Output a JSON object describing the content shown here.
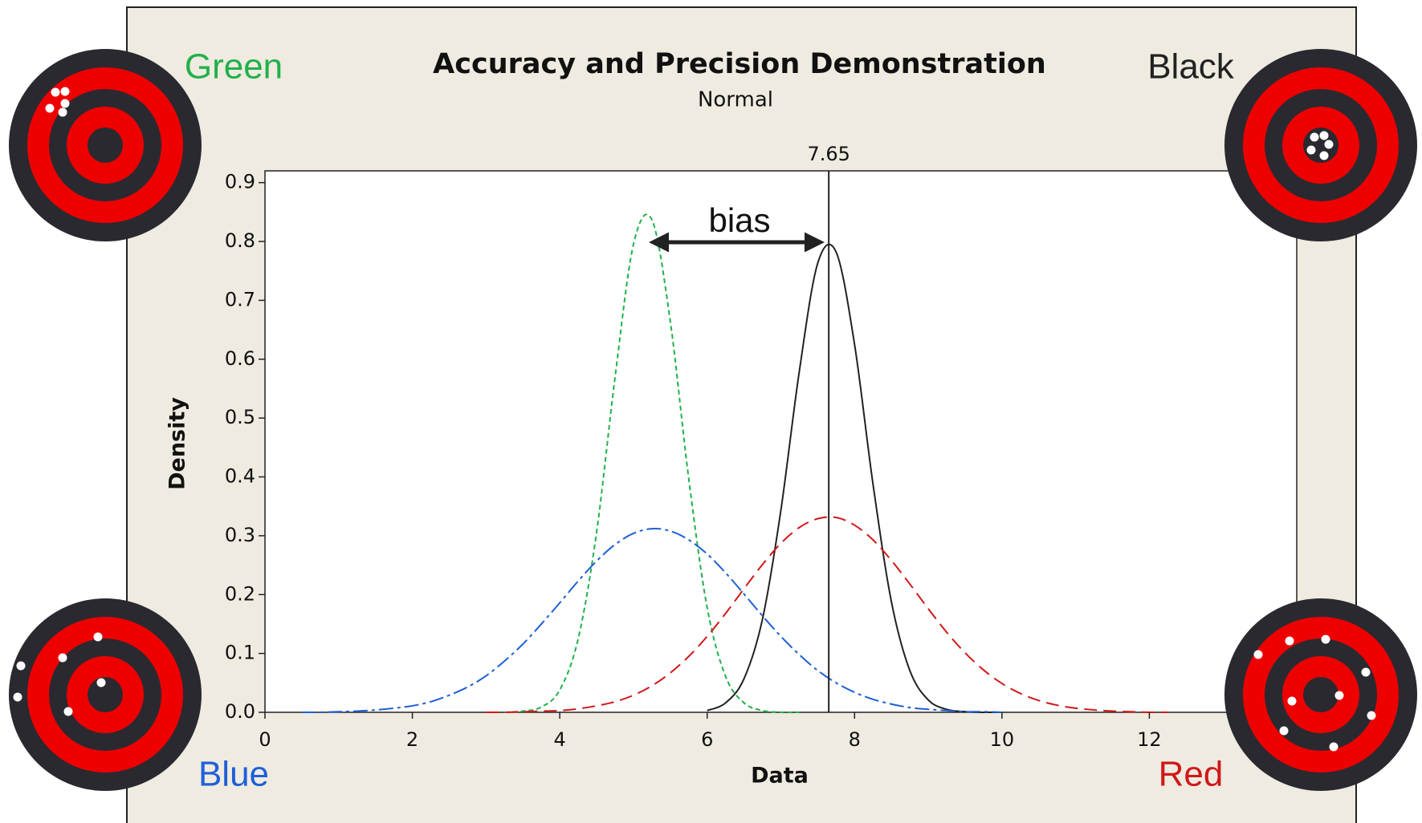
{
  "chart_data": {
    "type": "line",
    "title": "Accuracy and Precision Demonstration",
    "subtitle": "Normal",
    "xlabel": "Data",
    "ylabel": "Density",
    "annotation": "bias",
    "reference_line": {
      "value": 7.65,
      "color": "#222222"
    },
    "xlim": [
      0,
      14
    ],
    "ylim": [
      0,
      0.92
    ],
    "xticks": [
      0,
      2,
      4,
      6,
      8,
      10,
      12
    ],
    "yticks": [
      {
        "value": 0,
        "label": "0.0"
      },
      0.1,
      0.2,
      0.3,
      0.4,
      0.5,
      0.6,
      0.7,
      0.8,
      0.9
    ],
    "x": [
      0.5,
      0.75,
      1.0,
      1.25,
      1.5,
      1.75,
      2.0,
      2.25,
      2.5,
      2.75,
      3.0,
      3.25,
      3.5,
      3.75,
      4.0,
      4.25,
      4.5,
      4.75,
      5.0,
      5.25,
      5.5,
      5.75,
      6.0,
      6.25,
      6.5,
      6.75,
      7.0,
      7.25,
      7.5,
      7.75,
      8.0,
      8.25,
      8.5,
      8.75,
      9.0,
      9.25,
      9.5,
      9.75,
      10.0,
      10.25,
      10.5,
      10.75,
      11.0,
      11.25,
      11.5,
      11.75,
      12.0,
      12.25
    ],
    "series": [
      {
        "name": "Green",
        "color": "#22b04a",
        "dash": "dotted",
        "values": [
          null,
          null,
          null,
          null,
          null,
          null,
          null,
          null,
          null,
          null,
          null,
          0,
          0.002,
          0.009,
          0.038,
          0.125,
          0.306,
          0.569,
          0.795,
          0.837,
          0.664,
          0.397,
          0.178,
          0.061,
          0.016,
          0.003,
          0,
          0,
          null,
          null,
          null,
          null,
          null,
          null,
          null,
          null,
          null,
          null,
          null,
          null,
          null,
          null,
          null,
          null,
          null,
          null,
          null,
          null
        ]
      },
      {
        "name": "Black",
        "color": "#222222",
        "dash": "solid",
        "values": [
          null,
          null,
          null,
          null,
          null,
          null,
          null,
          null,
          null,
          null,
          null,
          null,
          null,
          null,
          null,
          null,
          null,
          null,
          null,
          null,
          null,
          null,
          0.003,
          0.016,
          0.057,
          0.158,
          0.343,
          0.579,
          0.763,
          0.782,
          0.625,
          0.388,
          0.188,
          0.071,
          0.021,
          0.005,
          0.001,
          0,
          0,
          null,
          null,
          null,
          null,
          null,
          null,
          null,
          null,
          null
        ]
      },
      {
        "name": "Blue",
        "color": "#1f5fd8",
        "dash": "dashdot",
        "values": [
          0,
          0,
          0.001,
          0.002,
          0.004,
          0.007,
          0.011,
          0.018,
          0.029,
          0.043,
          0.062,
          0.087,
          0.116,
          0.15,
          0.186,
          0.223,
          0.257,
          0.285,
          0.304,
          0.312,
          0.308,
          0.293,
          0.269,
          0.237,
          0.201,
          0.164,
          0.129,
          0.098,
          0.071,
          0.05,
          0.034,
          0.022,
          0.014,
          0.008,
          0.005,
          0.003,
          0.001,
          0.001,
          0,
          null,
          null,
          null,
          null,
          null,
          null,
          null,
          null,
          null
        ]
      },
      {
        "name": "Red",
        "color": "#d01818",
        "dash": "dashed",
        "values": [
          null,
          null,
          null,
          null,
          null,
          null,
          null,
          null,
          null,
          null,
          0,
          0,
          0.001,
          0.002,
          0.003,
          0.006,
          0.011,
          0.018,
          0.029,
          0.045,
          0.067,
          0.095,
          0.129,
          0.168,
          0.21,
          0.251,
          0.287,
          0.314,
          0.329,
          0.331,
          0.318,
          0.293,
          0.258,
          0.218,
          0.176,
          0.136,
          0.101,
          0.072,
          0.049,
          0.032,
          0.02,
          0.012,
          0.007,
          0.004,
          0.002,
          0.001,
          0,
          0
        ]
      }
    ]
  }
}
